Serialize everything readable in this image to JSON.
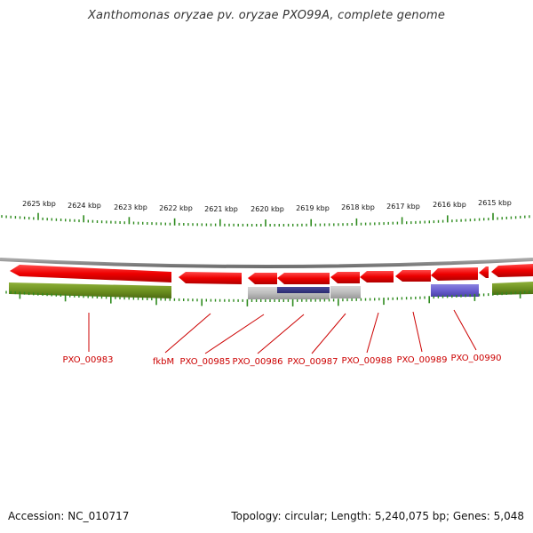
{
  "title": "Xanthomonas oryzae pv. oryzae PXO99A, complete genome",
  "accession_text": "Accession: NC_010717",
  "summary_text": "Topology: circular; Length: 5,240,075 bp; Genes: 5,048",
  "scale_labels": [
    "2625 kbp",
    "2624 kbp",
    "2623 kbp",
    "2622 kbp",
    "2621 kbp",
    "2620 kbp",
    "2619 kbp",
    "2618 kbp",
    "2617 kbp",
    "2616 kbp",
    "2615 kbp"
  ],
  "gene_labels": [
    "PXO_00983",
    "fkbM",
    "PXO_00985",
    "PXO_00986",
    "PXO_00987",
    "PXO_00988",
    "PXO_00989",
    "PXO_00990"
  ],
  "colors": {
    "gene_arrow": "#ee0000",
    "cds_green": "#6b8f1f",
    "cds_blue": "#6a5fcf",
    "cds_gray": "#b4b4b4",
    "backbone": "#888888",
    "ticks": "#2e8b1e",
    "gene_label": "#cc0000"
  }
}
